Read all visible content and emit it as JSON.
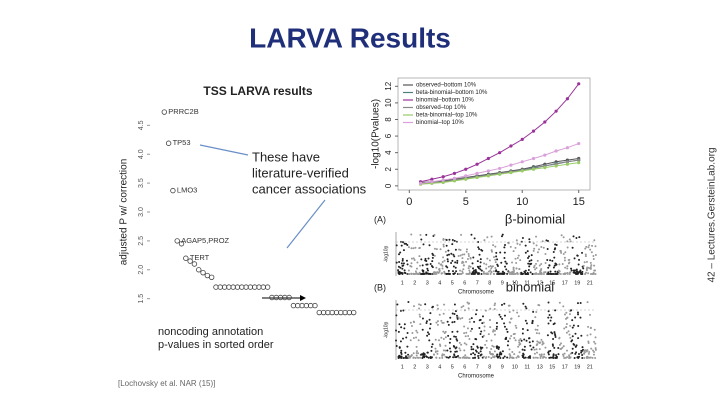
{
  "slide": {
    "title": "LARVA Results",
    "side_note": "42 – Lectures.GersteinLab.org",
    "citation": "[Lochovsky et al. NAR (15)]",
    "callout": [
      "These have",
      "literature-verified",
      "cancer associations"
    ],
    "sorted_note": [
      "noncoding annotation",
      "p-values in sorted order"
    ],
    "manhattan": [
      {
        "panel": "(A)",
        "label": "β-binomial",
        "x_label": "Chromosome",
        "y_label": "-log10p"
      },
      {
        "panel": "(B)",
        "label": "binomial",
        "x_label": "Chromosome",
        "y_label": "-log10p"
      }
    ],
    "chromosomes": [
      "1",
      "2",
      "3",
      "4",
      "5",
      "6",
      "7",
      "8",
      "9",
      "10",
      "11",
      "13",
      "15",
      "17",
      "19",
      "21"
    ]
  },
  "chart_data": [
    {
      "type": "scatter",
      "title": "TSS LARVA results",
      "y_label": "adjusted P w/ correction",
      "ylim": [
        1.2,
        4.8
      ],
      "yticks": [
        1.5,
        {
          "value": 2,
          "label": "2.0"
        },
        2.5,
        {
          "value": 3,
          "label": "3.0"
        },
        3.5,
        {
          "value": 4,
          "label": "4.0"
        },
        4.5
      ],
      "xlim": [
        0,
        46
      ],
      "x": [
        1,
        2,
        3,
        4,
        5,
        6,
        7,
        8,
        9,
        10,
        11,
        12,
        13,
        14,
        15,
        16,
        17,
        18,
        19,
        20,
        21,
        22,
        23,
        24,
        25,
        26,
        27,
        28,
        29,
        30,
        31,
        32,
        33,
        34,
        35,
        36,
        37,
        38,
        39,
        40,
        41,
        42,
        43,
        44,
        45
      ],
      "values": [
        4.73,
        4.19,
        3.37,
        2.5,
        2.45,
        2.2,
        2.15,
        2.1,
        2.0,
        1.95,
        1.9,
        1.87,
        1.7,
        1.7,
        1.7,
        1.7,
        1.7,
        1.7,
        1.7,
        1.7,
        1.7,
        1.7,
        1.7,
        1.7,
        1.7,
        1.52,
        1.52,
        1.52,
        1.52,
        1.52,
        1.38,
        1.38,
        1.38,
        1.38,
        1.38,
        1.38,
        1.26,
        1.26,
        1.26,
        1.26,
        1.26,
        1.26,
        1.26,
        1.26,
        1.26
      ],
      "labels": [
        "PRRC2B",
        "TP53",
        "LMO3",
        "AGAP5,PROZ",
        null,
        "TERT",
        null,
        null,
        null,
        null,
        null,
        null,
        null,
        null,
        null,
        null,
        null,
        null,
        null,
        null,
        null,
        null,
        null,
        null,
        null,
        null,
        null,
        null,
        null,
        null,
        null,
        null,
        null,
        null,
        null,
        null,
        null,
        null,
        null,
        null,
        null,
        null,
        null,
        null,
        null
      ],
      "color": "#444444"
    },
    {
      "type": "line",
      "y_label": "-log10(Pvalues)",
      "xlim": [
        -1,
        16
      ],
      "xticks": [
        0,
        5,
        10,
        15
      ],
      "ylim": [
        -0.5,
        13
      ],
      "yticks": [
        0,
        2,
        4,
        6,
        8,
        10,
        12
      ],
      "legend": "top-left",
      "x": [
        1,
        2,
        3,
        4,
        5,
        6,
        7,
        8,
        9,
        10,
        11,
        12,
        13,
        14,
        15
      ],
      "series": [
        {
          "name": "observed–bottom 10%",
          "color": "#555555",
          "values": [
            0.4,
            0.5,
            0.6,
            0.8,
            1.0,
            1.2,
            1.4,
            1.6,
            1.8,
            2.0,
            2.3,
            2.6,
            2.9,
            3.1,
            3.3
          ]
        },
        {
          "name": "beta-binomial–bottom 10%",
          "color": "#4f7f7a",
          "values": [
            0.3,
            0.4,
            0.5,
            0.7,
            0.9,
            1.1,
            1.3,
            1.5,
            1.7,
            1.9,
            2.2,
            2.4,
            2.7,
            2.9,
            3.1
          ]
        },
        {
          "name": "binomial–bottom 10%",
          "color": "#993399",
          "values": [
            0.5,
            0.8,
            1.1,
            1.5,
            2.0,
            2.6,
            3.3,
            4.0,
            4.8,
            5.6,
            6.6,
            7.7,
            9.0,
            10.5,
            12.3
          ]
        },
        {
          "name": "observed–top 10%",
          "color": "#888888",
          "values": [
            0.3,
            0.4,
            0.5,
            0.7,
            0.9,
            1.1,
            1.3,
            1.5,
            1.7,
            1.9,
            2.1,
            2.4,
            2.6,
            2.9,
            3.1
          ]
        },
        {
          "name": "beta-binomial–top 10%",
          "color": "#99cc66",
          "values": [
            0.2,
            0.3,
            0.4,
            0.6,
            0.8,
            1.0,
            1.2,
            1.4,
            1.6,
            1.8,
            2.0,
            2.2,
            2.4,
            2.6,
            2.8
          ]
        },
        {
          "name": "binomial–top 10%",
          "color": "#d9a0d9",
          "values": [
            0.3,
            0.5,
            0.7,
            0.9,
            1.2,
            1.5,
            1.8,
            2.1,
            2.5,
            2.9,
            3.3,
            3.7,
            4.2,
            4.6,
            5.1
          ]
        }
      ]
    }
  ]
}
